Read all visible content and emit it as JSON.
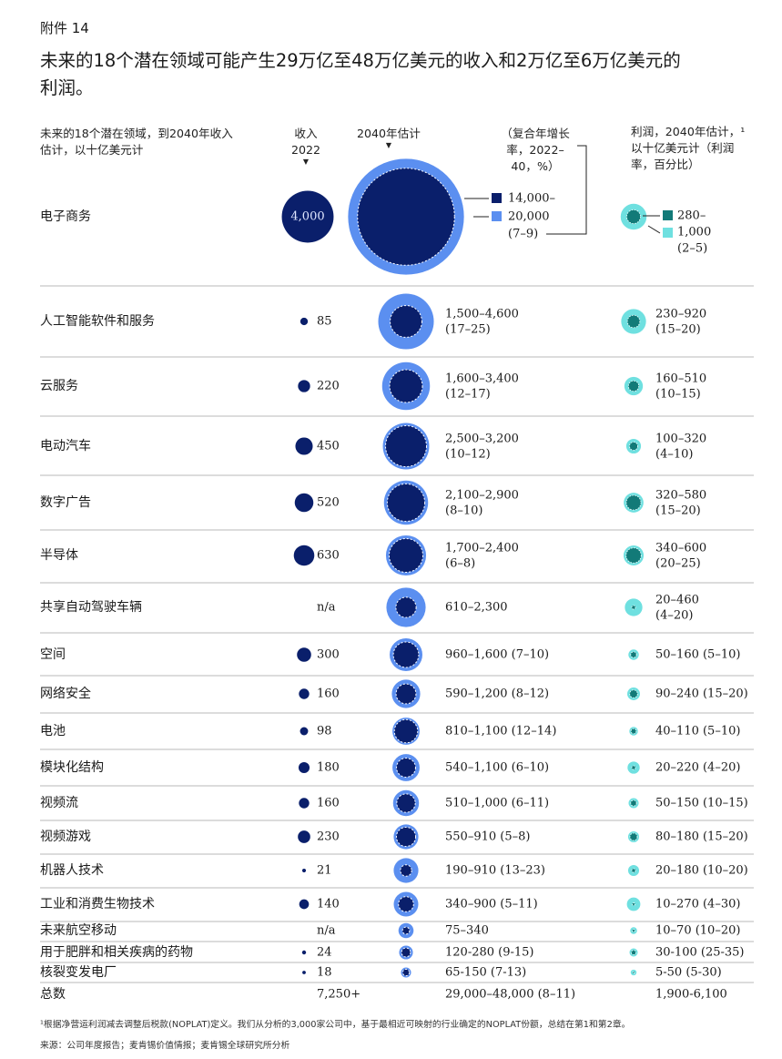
{
  "exhibit_label": "附件 14",
  "title": "未来的18个潜在领域可能产生29万亿至48万亿美元的收入和2万亿至6万亿美元的利润。",
  "headers": {
    "categories": "未来的18个潜在领域，到2040年收入估计，以十亿美元计",
    "revenue_2022": "收入\n2022",
    "estimate_2040": "2040年估计",
    "cagr": "（复合年增长率，2022–40，%）",
    "profit": "利润，2040年估计，¹ 以十亿美元计（利润率，百分比）"
  },
  "colors": {
    "revenue_navy": "#0a1f6b",
    "estimate_light": "#5b8ff0",
    "profit_dark_teal": "#127a78",
    "profit_light": "#6fe0e0",
    "divider": "#b8b8b8"
  },
  "chart_data": {
    "type": "bubble-table",
    "units": "十亿美元",
    "rows": [
      {
        "category": "电子商务",
        "revenue_2022": 4000,
        "revenue_2022_text": "4,000",
        "est_low": 14000,
        "est_high": 20000,
        "est_line1": "14,000–",
        "est_line2": "20,000",
        "est_line3": "(7–9)",
        "profit_low": 280,
        "profit_high": 1000,
        "profit_line1": "280–",
        "profit_line2": "1,000",
        "profit_line3": "(2–5)"
      },
      {
        "category": "人工智能软件和服务",
        "revenue_2022": 85,
        "revenue_2022_text": "85",
        "est_low": 1500,
        "est_high": 4600,
        "est_line1": "1,500–4,600",
        "est_line2": "(17–25)",
        "profit_low": 230,
        "profit_high": 920,
        "profit_line1": "230–920",
        "profit_line2": "(15–20)"
      },
      {
        "category": "云服务",
        "revenue_2022": 220,
        "revenue_2022_text": "220",
        "est_low": 1600,
        "est_high": 3400,
        "est_line1": "1,600–3,400",
        "est_line2": "(12–17)",
        "profit_low": 160,
        "profit_high": 510,
        "profit_line1": "160–510",
        "profit_line2": "(10–15)"
      },
      {
        "category": "电动汽车",
        "revenue_2022": 450,
        "revenue_2022_text": "450",
        "est_low": 2500,
        "est_high": 3200,
        "est_line1": "2,500–3,200",
        "est_line2": "(10–12)",
        "profit_low": 100,
        "profit_high": 320,
        "profit_line1": "100–320",
        "profit_line2": "(4–10)"
      },
      {
        "category": "数字广告",
        "revenue_2022": 520,
        "revenue_2022_text": "520",
        "est_low": 2100,
        "est_high": 2900,
        "est_line1": "2,100–2,900",
        "est_line2": "(8–10)",
        "profit_low": 320,
        "profit_high": 580,
        "profit_line1": "320–580",
        "profit_line2": "(15–20)"
      },
      {
        "category": "半导体",
        "revenue_2022": 630,
        "revenue_2022_text": "630",
        "est_low": 1700,
        "est_high": 2400,
        "est_line1": "1,700–2,400",
        "est_line2": "(6–8)",
        "profit_low": 340,
        "profit_high": 600,
        "profit_line1": "340–600",
        "profit_line2": "(20–25)"
      },
      {
        "category": "共享自动驾驶车辆",
        "revenue_2022": null,
        "revenue_2022_text": "n/a",
        "est_low": 610,
        "est_high": 2300,
        "est_line1": "610–2,300",
        "est_line2": "",
        "profit_low": 20,
        "profit_high": 460,
        "profit_line1": "20–460",
        "profit_line2": "(4–20)"
      },
      {
        "category": "空间",
        "revenue_2022": 300,
        "revenue_2022_text": "300",
        "est_low": 960,
        "est_high": 1600,
        "est_line1": "960–1,600 (7–10)",
        "profit_low": 50,
        "profit_high": 160,
        "profit_line1": "50–160 (5–10)"
      },
      {
        "category": "网络安全",
        "revenue_2022": 160,
        "revenue_2022_text": "160",
        "est_low": 590,
        "est_high": 1200,
        "est_line1": "590–1,200 (8–12)",
        "profit_low": 90,
        "profit_high": 240,
        "profit_line1": "90–240 (15–20)"
      },
      {
        "category": "电池",
        "revenue_2022": 98,
        "revenue_2022_text": "98",
        "est_low": 810,
        "est_high": 1100,
        "est_line1": "810–1,100 (12–14)",
        "profit_low": 40,
        "profit_high": 110,
        "profit_line1": "40–110 (5–10)"
      },
      {
        "category": "模块化结构",
        "revenue_2022": 180,
        "revenue_2022_text": "180",
        "est_low": 540,
        "est_high": 1100,
        "est_line1": "540–1,100 (6–10)",
        "profit_low": 20,
        "profit_high": 220,
        "profit_line1": "20–220 (4–20)"
      },
      {
        "category": "视频流",
        "revenue_2022": 160,
        "revenue_2022_text": "160",
        "est_low": 510,
        "est_high": 1000,
        "est_line1": "510–1,000 (6–11)",
        "profit_low": 50,
        "profit_high": 150,
        "profit_line1": "50–150 (10–15)"
      },
      {
        "category": "视频游戏",
        "revenue_2022": 230,
        "revenue_2022_text": "230",
        "est_low": 550,
        "est_high": 910,
        "est_line1": "550–910 (5–8)",
        "profit_low": 80,
        "profit_high": 180,
        "profit_line1": "80–180 (15–20)"
      },
      {
        "category": "机器人技术",
        "revenue_2022": 21,
        "revenue_2022_text": "21",
        "est_low": 190,
        "est_high": 910,
        "est_line1": "190–910 (13–23)",
        "profit_low": 20,
        "profit_high": 180,
        "profit_line1": "20–180 (10–20)"
      },
      {
        "category": "工业和消费生物技术",
        "revenue_2022": 140,
        "revenue_2022_text": "140",
        "est_low": 340,
        "est_high": 900,
        "est_line1": "340–900 (5–11)",
        "profit_low": 10,
        "profit_high": 270,
        "profit_line1": "10–270 (4–30)"
      },
      {
        "category": "未来航空移动",
        "revenue_2022": null,
        "revenue_2022_text": "n/a",
        "est_low": 75,
        "est_high": 340,
        "est_line1": "75–340",
        "profit_low": 10,
        "profit_high": 70,
        "profit_line1": "10–70 (10–20)"
      },
      {
        "category": "用于肥胖和相关疾病的药物",
        "revenue_2022": 24,
        "revenue_2022_text": "24",
        "est_low": 120,
        "est_high": 280,
        "est_line1": "120-280 (9-15)",
        "profit_low": 30,
        "profit_high": 100,
        "profit_line1": "30-100 (25-35)"
      },
      {
        "category": "核裂变发电厂",
        "revenue_2022": 18,
        "revenue_2022_text": "18",
        "est_low": 65,
        "est_high": 150,
        "est_line1": "65-150 (7-13)",
        "profit_low": 5,
        "profit_high": 50,
        "profit_line1": "5-50 (5-30)"
      }
    ],
    "total": {
      "label": "总数",
      "revenue_2022": "7,250+",
      "estimate_2040": "29,000–48,000 (8–11)",
      "profit_2040": "1,900-6,100"
    }
  },
  "footnote": "¹根据净营运利润减去调整后税款(NOPLAT)定义。我们从分析的3,000家公司中，基于最相近可映射的行业确定的NOPLAT份额，总结在第1和第2章。",
  "source": "来源：公司年度报告；麦肯锡价值情报；麦肯锡全球研究所分析"
}
